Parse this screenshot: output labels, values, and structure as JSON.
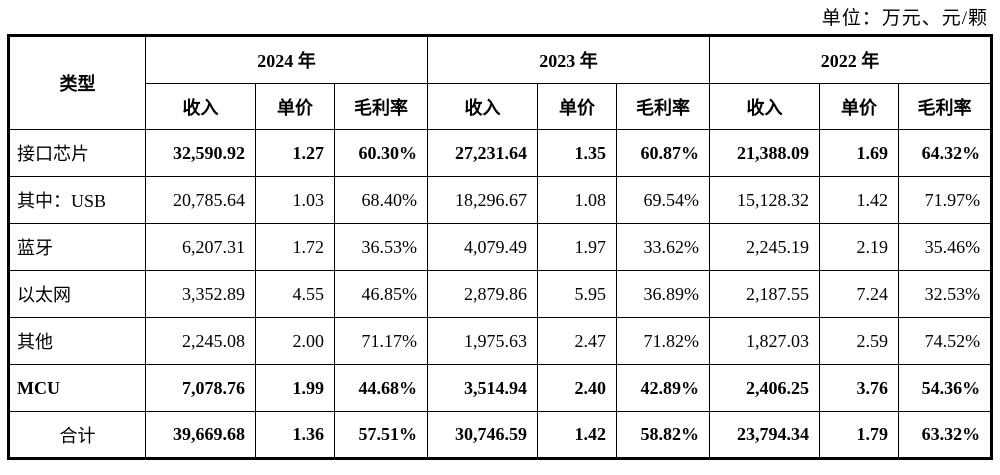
{
  "unit_label": "单位：万元、元/颗",
  "colors": {
    "border": "#000000",
    "text": "#000000",
    "background": "#ffffff"
  },
  "table": {
    "type_header": "类型",
    "year_groups": [
      "2024 年",
      "2023 年",
      "2022 年"
    ],
    "sub_headers": [
      "收入",
      "单价",
      "毛利率"
    ],
    "rows": [
      {
        "label": "接口芯片",
        "values": [
          "32,590.92",
          "1.27",
          "60.30%",
          "27,231.64",
          "1.35",
          "60.87%",
          "21,388.09",
          "1.69",
          "64.32%"
        ]
      },
      {
        "label": "其中：USB",
        "values": [
          "20,785.64",
          "1.03",
          "68.40%",
          "18,296.67",
          "1.08",
          "69.54%",
          "15,128.32",
          "1.42",
          "71.97%"
        ]
      },
      {
        "label": "蓝牙",
        "values": [
          "6,207.31",
          "1.72",
          "36.53%",
          "4,079.49",
          "1.97",
          "33.62%",
          "2,245.19",
          "2.19",
          "35.46%"
        ]
      },
      {
        "label": "以太网",
        "values": [
          "3,352.89",
          "4.55",
          "46.85%",
          "2,879.86",
          "5.95",
          "36.89%",
          "2,187.55",
          "7.24",
          "32.53%"
        ]
      },
      {
        "label": "其他",
        "values": [
          "2,245.08",
          "2.00",
          "71.17%",
          "1,975.63",
          "2.47",
          "71.82%",
          "1,827.03",
          "2.59",
          "74.52%"
        ]
      },
      {
        "label": "MCU",
        "values": [
          "7,078.76",
          "1.99",
          "44.68%",
          "3,514.94",
          "2.40",
          "42.89%",
          "2,406.25",
          "3.76",
          "54.36%"
        ]
      },
      {
        "label": "合计",
        "values": [
          "39,669.68",
          "1.36",
          "57.51%",
          "30,746.59",
          "1.42",
          "58.82%",
          "23,794.34",
          "1.79",
          "63.32%"
        ]
      }
    ]
  }
}
